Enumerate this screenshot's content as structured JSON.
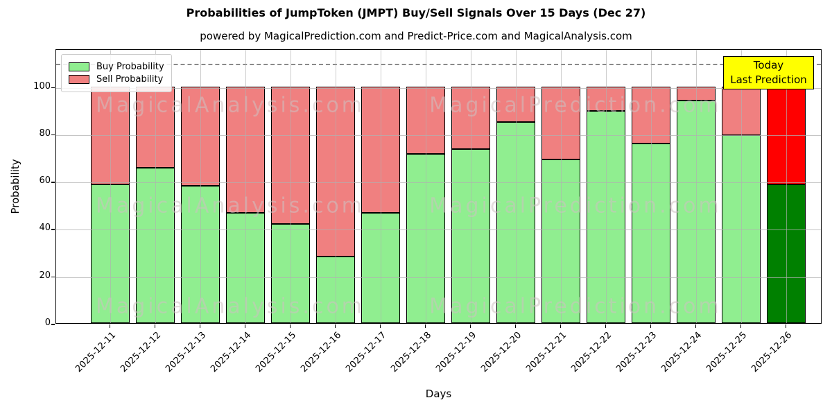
{
  "title": "Probabilities of JumpToken (JMPT) Buy/Sell Signals Over 15 Days (Dec 27)",
  "subtitle": "powered by MagicalPrediction.com and Predict-Price.com and MagicalAnalysis.com",
  "annotation": {
    "line1": "Today",
    "line2": "Last Prediction"
  },
  "legend": [
    {
      "label": "Buy Probability",
      "color": "#90EE90"
    },
    {
      "label": "Sell Probability",
      "color": "#F08080"
    }
  ],
  "watermarks": {
    "left": "MagicalAnalysis.com",
    "right": "MagicalPrediction.com"
  },
  "colors": {
    "buy": "#90EE90",
    "sell": "#F08080",
    "today_buy": "#008000",
    "today_sell": "#FF0000",
    "annotation_bg": "#FFFF00",
    "grid": "#B0B0B0",
    "edge": "#000000"
  },
  "chart_data": {
    "type": "bar",
    "stacked": true,
    "title": "Probabilities of JumpToken (JMPT) Buy/Sell Signals Over 15 Days (Dec 27)",
    "subtitle": "powered by MagicalPrediction.com and Predict-Price.com and MagicalAnalysis.com",
    "categories": [
      "2025-12-11",
      "2025-12-12",
      "2025-12-13",
      "2025-12-14",
      "2025-12-15",
      "2025-12-16",
      "2025-12-17",
      "2025-12-18",
      "2025-12-19",
      "2025-12-20",
      "2025-12-21",
      "2025-12-22",
      "2025-12-23",
      "2025-12-24",
      "2025-12-25",
      "2025-12-26"
    ],
    "series": [
      {
        "name": "Buy Probability",
        "color": "#90EE90",
        "values": [
          58.5,
          65.5,
          58,
          46.5,
          42,
          28,
          46.5,
          71.5,
          73.5,
          85,
          69,
          89.5,
          76,
          94,
          79.5,
          58.5
        ]
      },
      {
        "name": "Sell Probability",
        "color": "#F08080",
        "values": [
          41.5,
          34.5,
          42,
          53.5,
          58,
          72,
          53.5,
          28.5,
          26.5,
          15,
          31,
          10.5,
          24,
          6,
          20.5,
          41.5
        ]
      }
    ],
    "today_index": 15,
    "today_colors": {
      "buy": "#008000",
      "sell": "#FF0000"
    },
    "xlabel": "Days",
    "ylabel": "Probability",
    "yticks": [
      0,
      20,
      40,
      60,
      80,
      100
    ],
    "ylim": [
      0,
      116
    ],
    "dashed_line_y": 110,
    "grid": true,
    "legend_position": "upper left",
    "annotation_text": "Today Last Prediction"
  }
}
